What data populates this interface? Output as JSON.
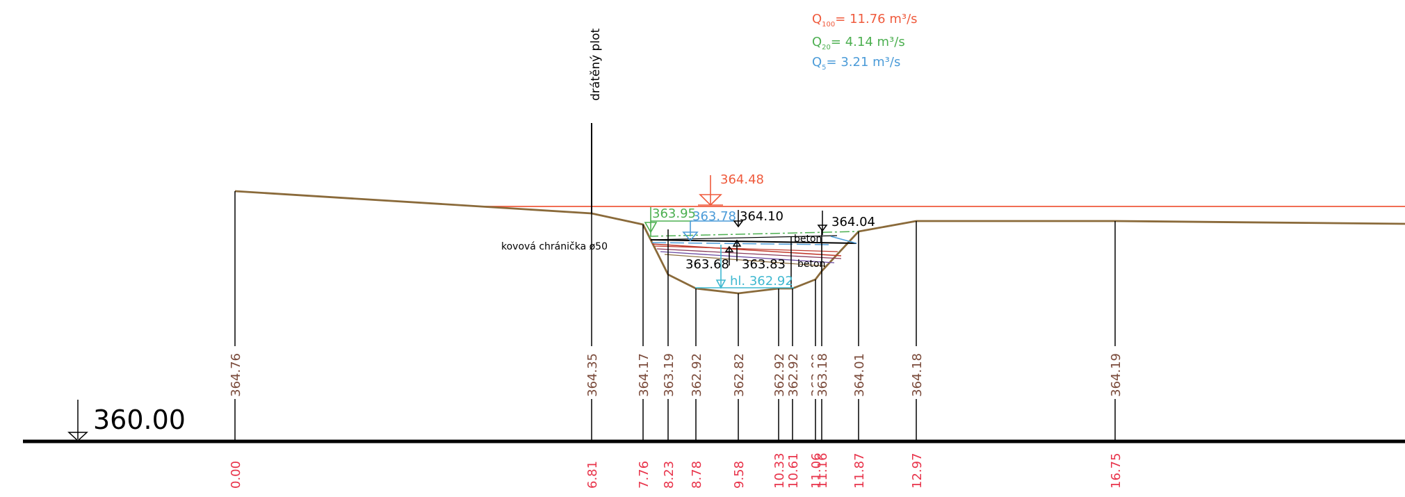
{
  "legend": {
    "q100": {
      "sub": "100",
      "text": "= 11.76 m³/s",
      "color": "#ef5a3c"
    },
    "q20": {
      "sub": "20",
      "text": "= 4.14 m³/s",
      "color": "#4caf50"
    },
    "q5": {
      "sub": "5",
      "text": "= 3.21 m³/s",
      "color": "#4b9bd8"
    }
  },
  "labels": {
    "fence": "drátěný plot",
    "pipe": "kovová chránička ø50",
    "concrete_1": "beton",
    "concrete_2": "beton",
    "datum": "360.00",
    "bottom": "hl. 362.92"
  },
  "levels": {
    "q100": "364.48",
    "q20": "363.95",
    "q5": "363.78",
    "l1": "364.10",
    "l2": "364.04",
    "l3": "363.68",
    "l4": "363.83"
  },
  "ground": {
    "elevations": [
      "364.76",
      "364.35",
      "364.17",
      "363.19",
      "362.92",
      "362.82",
      "362.92",
      "362.92",
      "363.09",
      "363.18",
      "364.01",
      "364.18",
      "364.19"
    ],
    "stations": [
      "0.00",
      "6.81",
      "7.76",
      "8.23",
      "8.78",
      "9.58",
      "10.33",
      "10.61",
      "11.06",
      "11.16",
      "11.87",
      "12.97",
      "16.75"
    ]
  },
  "colors": {
    "terrain": "#8a6a3a",
    "elevation_text": "#7a4a3a",
    "station_text": "#e8334a",
    "q100_line": "#ef5a3c",
    "q20_line": "#4caf50",
    "q5_line": "#4b9bd8",
    "bottom_text": "#3fb8d0"
  }
}
